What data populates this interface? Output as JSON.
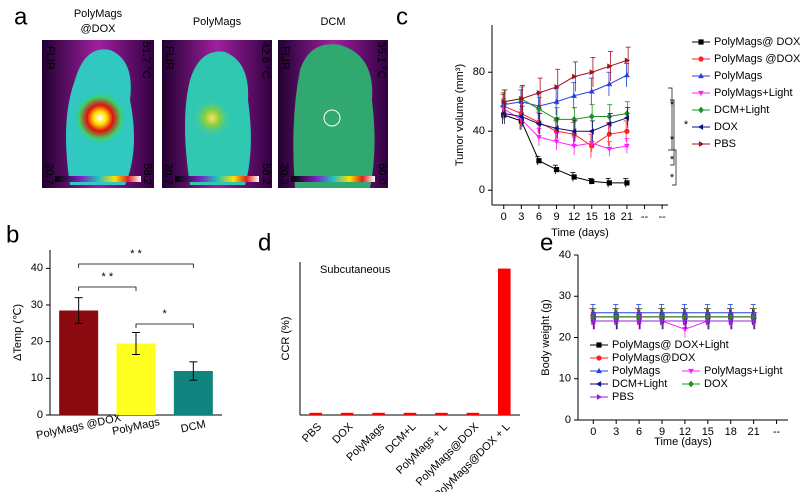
{
  "panel_a": {
    "label": "a",
    "images": [
      {
        "title_lines": [
          "PolyMags",
          "@DOX"
        ],
        "temperature": "51.7 °C",
        "scale_min": "20.7",
        "scale_max": "58.2",
        "logo": "FLIR"
      },
      {
        "title_lines": [
          "PolyMags"
        ],
        "temperature": "42.6 °C",
        "scale_min": "20.7",
        "scale_max": "58.2",
        "logo": "FLIR"
      },
      {
        "title_lines": [
          "DCM"
        ],
        "temperature": "35.1 °C",
        "scale_min": "20.3",
        "scale_max": "60.0",
        "logo": "FLIR"
      }
    ]
  },
  "chart_data": [
    {
      "type": "line",
      "panel": "c",
      "x_label": "Time (days)",
      "y_label": "Tumor volume (mm³)",
      "x": [
        0,
        3,
        6,
        9,
        12,
        15,
        18,
        21
      ],
      "xlim": [
        -2,
        28
      ],
      "xticks": [
        0,
        3,
        6,
        9,
        12,
        15,
        18,
        21,
        {
          "value": 24,
          "label": "--"
        },
        {
          "value": 27,
          "label": "--"
        }
      ],
      "ylim": [
        -10,
        112
      ],
      "yticks": [
        0,
        40,
        80
      ],
      "legend": "right",
      "annotations": [
        "*",
        "*",
        "*",
        "*",
        "*"
      ],
      "series": [
        {
          "name": "PolyMags@ DOX+Light",
          "color": "#000000",
          "marker": "square",
          "values": [
            51,
            47,
            20,
            14,
            9,
            6,
            5,
            5
          ],
          "errors": [
            6,
            6,
            3,
            3,
            3,
            2,
            3,
            3
          ]
        },
        {
          "name": "PolyMags @DOX",
          "color": "#ff2020",
          "marker": "circle",
          "values": [
            57,
            52,
            46,
            40,
            38,
            30,
            38,
            40
          ],
          "errors": [
            8,
            8,
            7,
            7,
            8,
            8,
            8,
            7
          ]
        },
        {
          "name": "PolyMags",
          "color": "#2040e0",
          "marker": "triangle-up",
          "values": [
            58,
            60,
            57,
            60,
            64,
            67,
            72,
            78
          ],
          "errors": [
            8,
            8,
            9,
            9,
            9,
            9,
            8,
            8
          ]
        },
        {
          "name": "PolyMags+Light",
          "color": "#ff20ff",
          "marker": "triangle-down",
          "values": [
            55,
            48,
            36,
            33,
            30,
            32,
            28,
            30
          ],
          "errors": [
            7,
            7,
            6,
            6,
            6,
            6,
            5,
            5
          ]
        },
        {
          "name": "DCM+Light",
          "color": "#209020",
          "marker": "diamond",
          "values": [
            60,
            62,
            55,
            48,
            48,
            50,
            50,
            52
          ],
          "errors": [
            8,
            8,
            8,
            8,
            8,
            8,
            8,
            8
          ]
        },
        {
          "name": "DOX",
          "color": "#101080",
          "marker": "triangle-left",
          "values": [
            52,
            50,
            45,
            42,
            40,
            40,
            45,
            49
          ],
          "errors": [
            7,
            7,
            7,
            7,
            7,
            7,
            7,
            7
          ]
        },
        {
          "name": "PBS",
          "color": "#a01020",
          "marker": "triangle-right",
          "values": [
            60,
            62,
            66,
            70,
            77,
            80,
            84,
            88
          ],
          "errors": [
            8,
            9,
            10,
            12,
            10,
            10,
            10,
            9
          ]
        }
      ]
    },
    {
      "type": "bar",
      "panel": "b",
      "y_label": "ΔTemp (℃)",
      "categories": [
        "PolyMags @DOX",
        "PolyMags",
        "DCM"
      ],
      "values": [
        28.5,
        19.5,
        12
      ],
      "errors": [
        3.5,
        3,
        2.5
      ],
      "colors": [
        "#8b0a10",
        "#ffff20",
        "#10857f"
      ],
      "ylim": [
        0,
        45
      ],
      "yticks": [
        0,
        10,
        20,
        30,
        40
      ],
      "annotations": [
        "* *",
        "* *",
        "*"
      ]
    },
    {
      "type": "bar",
      "panel": "d",
      "y_label": "CCR (%)",
      "annotation": "Subcutaneous",
      "categories": [
        "PBS",
        "DOX",
        "PolyMags",
        "DCM+L",
        "PolyMags + L",
        "PolyMags@DOX",
        "PolyMags@DOX + L"
      ],
      "values": [
        1,
        1,
        1,
        1,
        1,
        1,
        67
      ],
      "color": "#ff0000",
      "ylim": [
        0,
        70
      ]
    },
    {
      "type": "line",
      "panel": "e",
      "x_label": "Time (days)",
      "y_label": "Body weight (g)",
      "x": [
        0,
        3,
        6,
        9,
        12,
        15,
        18,
        21
      ],
      "xlim": [
        -2,
        25.5
      ],
      "xticks": [
        0,
        3,
        6,
        9,
        12,
        15,
        18,
        21,
        {
          "value": 24,
          "label": "--"
        }
      ],
      "ylim": [
        0,
        40
      ],
      "yticks": [
        0,
        10,
        20,
        30,
        40
      ],
      "legend": "lower left",
      "series": [
        {
          "name": "PolyMags@ DOX+Light",
          "color": "#000000",
          "marker": "square",
          "values": [
            25,
            25,
            25,
            25,
            25,
            25,
            25,
            25
          ],
          "errors": [
            2,
            2,
            2,
            2,
            2,
            2,
            2,
            2
          ]
        },
        {
          "name": "PolyMags@DOX",
          "color": "#ff2020",
          "marker": "circle",
          "values": [
            25,
            25,
            25,
            25,
            25,
            25,
            25,
            25
          ],
          "errors": [
            2,
            2,
            2,
            2,
            2,
            2,
            2,
            2
          ]
        },
        {
          "name": "PolyMags",
          "color": "#2040e0",
          "marker": "triangle-up",
          "values": [
            26,
            26,
            26,
            26,
            26,
            26,
            26,
            26
          ],
          "errors": [
            2,
            2,
            2,
            2,
            2,
            2,
            2,
            2
          ]
        },
        {
          "name": "PolyMags+Light",
          "color": "#ff20ff",
          "marker": "triangle-down",
          "values": [
            24,
            24,
            24,
            24,
            22,
            24,
            24,
            24
          ],
          "errors": [
            2,
            2,
            2,
            2,
            2,
            2,
            2,
            2
          ]
        },
        {
          "name": "DCM+Light",
          "color": "#101080",
          "marker": "triangle-left",
          "values": [
            24,
            24,
            24,
            24,
            24,
            24,
            24,
            24
          ],
          "errors": [
            2,
            2,
            2,
            2,
            2,
            2,
            2,
            2
          ]
        },
        {
          "name": "DOX",
          "color": "#209020",
          "marker": "diamond",
          "values": [
            25,
            25,
            25,
            25,
            25,
            25,
            25,
            25
          ],
          "errors": [
            2,
            2,
            2,
            2,
            2,
            2,
            2,
            2
          ]
        },
        {
          "name": "PBS",
          "color": "#9020e0",
          "marker": "triangle-right",
          "values": [
            24,
            24,
            24,
            24,
            24,
            24,
            24,
            24
          ],
          "errors": [
            2,
            2,
            2,
            2,
            2,
            2,
            2,
            2
          ]
        }
      ]
    }
  ]
}
